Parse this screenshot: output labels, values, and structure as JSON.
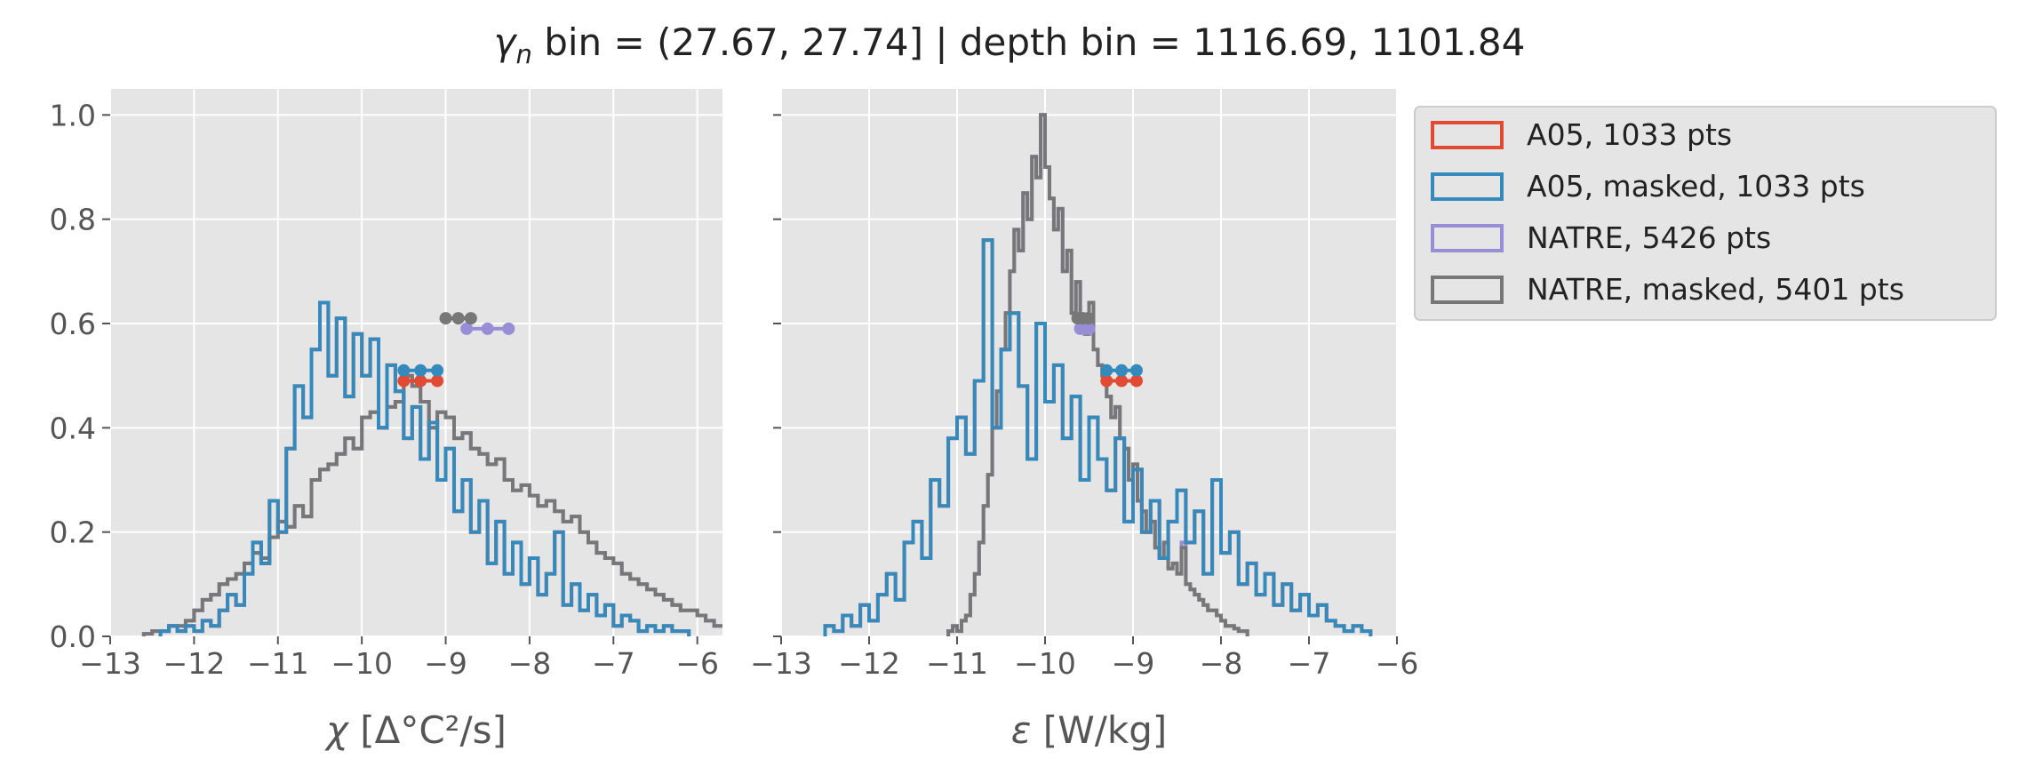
{
  "figure": {
    "title_prefix": "γ",
    "title_subscript": "n",
    "title_rest": " bin = (27.67, 27.74] | depth bin = 1116.69, 1101.84"
  },
  "colors": {
    "A05": "#E24A33",
    "A05_masked": "#348ABD",
    "NATRE": "#988ED5",
    "NATRE_masked": "#777777",
    "panel_bg": "#E5E5E5",
    "grid": "#FFFFFF"
  },
  "legend": {
    "placement": "outside-right",
    "entries": [
      {
        "key": "A05",
        "label": "A05, 1033 pts"
      },
      {
        "key": "A05_masked",
        "label": "A05, masked,  1033 pts"
      },
      {
        "key": "NATRE",
        "label": "NATRE, 5426 pts"
      },
      {
        "key": "NATRE_masked",
        "label": "NATRE, masked,  5401 pts"
      }
    ]
  },
  "chart_data": [
    {
      "type": "histogram",
      "histtype": "step",
      "xlabel_symbol": "χ",
      "xlabel_unit": " [Δ°C²/s]",
      "xlim": [
        -13.0,
        -5.7
      ],
      "ylim": [
        0,
        1.05
      ],
      "xticks": [
        -13,
        -12,
        -11,
        -10,
        -9,
        -8,
        -7,
        -6
      ],
      "xtick_labels": [
        "−13",
        "−12",
        "−11",
        "−10",
        "−9",
        "−8",
        "−7",
        "−6"
      ],
      "yticks": [
        0.0,
        0.2,
        0.4,
        0.6,
        0.8,
        1.0
      ],
      "ytick_labels": [
        "0.0",
        "0.2",
        "0.4",
        "0.6",
        "0.8",
        "1.0"
      ],
      "grid": true,
      "series": [
        {
          "key": "NATRE",
          "bin_start": -12.6,
          "bin_width": 0.1,
          "values": [
            0.005,
            0.01,
            0.01,
            0.02,
            0.02,
            0.03,
            0.05,
            0.07,
            0.08,
            0.1,
            0.11,
            0.12,
            0.14,
            0.16,
            0.15,
            0.19,
            0.22,
            0.21,
            0.25,
            0.23,
            0.3,
            0.32,
            0.33,
            0.35,
            0.38,
            0.36,
            0.42,
            0.43,
            0.4,
            0.44,
            0.45,
            0.5,
            0.48,
            0.45,
            0.4,
            0.43,
            0.42,
            0.38,
            0.39,
            0.36,
            0.35,
            0.33,
            0.34,
            0.3,
            0.28,
            0.29,
            0.27,
            0.25,
            0.26,
            0.24,
            0.22,
            0.23,
            0.2,
            0.18,
            0.16,
            0.15,
            0.14,
            0.12,
            0.11,
            0.1,
            0.09,
            0.08,
            0.07,
            0.06,
            0.05,
            0.05,
            0.04,
            0.03,
            0.02,
            0.02,
            0.015,
            0.01,
            0.01,
            0.01,
            0.005,
            0.005,
            0.01,
            0.005,
            0.005,
            0.005,
            0.005,
            0.005,
            0.005
          ]
        },
        {
          "key": "NATRE_masked",
          "bin_start": -12.6,
          "bin_width": 0.1,
          "values": [
            0.005,
            0.01,
            0.01,
            0.02,
            0.02,
            0.03,
            0.05,
            0.07,
            0.08,
            0.1,
            0.11,
            0.12,
            0.14,
            0.16,
            0.15,
            0.19,
            0.22,
            0.21,
            0.25,
            0.23,
            0.3,
            0.32,
            0.33,
            0.35,
            0.38,
            0.36,
            0.42,
            0.43,
            0.4,
            0.44,
            0.45,
            0.5,
            0.48,
            0.45,
            0.4,
            0.43,
            0.42,
            0.38,
            0.39,
            0.36,
            0.35,
            0.33,
            0.34,
            0.3,
            0.28,
            0.29,
            0.27,
            0.25,
            0.26,
            0.24,
            0.22,
            0.23,
            0.2,
            0.18,
            0.16,
            0.15,
            0.14,
            0.12,
            0.11,
            0.1,
            0.09,
            0.08,
            0.07,
            0.06,
            0.05,
            0.05,
            0.04,
            0.03,
            0.02,
            0.02,
            0.015,
            0.01
          ]
        },
        {
          "key": "A05",
          "bin_start": -12.4,
          "bin_width": 0.1,
          "values": [
            0.01,
            0.02,
            0.01,
            0.02,
            0.01,
            0.03,
            0.02,
            0.05,
            0.08,
            0.06,
            0.12,
            0.18,
            0.14,
            0.26,
            0.2,
            0.36,
            0.48,
            0.42,
            0.55,
            0.64,
            0.5,
            0.61,
            0.46,
            0.58,
            0.5,
            0.57,
            0.4,
            0.52,
            0.47,
            0.38,
            0.44,
            0.34,
            0.41,
            0.3,
            0.36,
            0.24,
            0.3,
            0.2,
            0.26,
            0.14,
            0.22,
            0.12,
            0.18,
            0.1,
            0.15,
            0.08,
            0.12,
            0.2,
            0.06,
            0.1,
            0.05,
            0.08,
            0.04,
            0.06,
            0.02,
            0.04,
            0.03,
            0.01,
            0.02,
            0.01,
            0.02,
            0.01,
            0.01
          ]
        },
        {
          "key": "A05_masked",
          "bin_start": -12.4,
          "bin_width": 0.1,
          "values": [
            0.01,
            0.02,
            0.01,
            0.02,
            0.01,
            0.03,
            0.02,
            0.05,
            0.08,
            0.06,
            0.12,
            0.18,
            0.14,
            0.26,
            0.2,
            0.36,
            0.48,
            0.42,
            0.55,
            0.64,
            0.5,
            0.61,
            0.46,
            0.58,
            0.5,
            0.57,
            0.4,
            0.52,
            0.47,
            0.38,
            0.44,
            0.34,
            0.41,
            0.3,
            0.36,
            0.24,
            0.3,
            0.2,
            0.26,
            0.14,
            0.22,
            0.12,
            0.18,
            0.1,
            0.15,
            0.08,
            0.12,
            0.2,
            0.06,
            0.1,
            0.05,
            0.08,
            0.04,
            0.06,
            0.02,
            0.04,
            0.03,
            0.01,
            0.02,
            0.01,
            0.02,
            0.01,
            0.01
          ]
        }
      ],
      "markers": [
        {
          "key": "A05",
          "x": [
            -9.5,
            -9.3,
            -9.1
          ],
          "y": 0.49
        },
        {
          "key": "A05_masked",
          "x": [
            -9.5,
            -9.3,
            -9.1
          ],
          "y": 0.51
        },
        {
          "key": "NATRE",
          "x": [
            -8.75,
            -8.5,
            -8.25
          ],
          "y": 0.59
        },
        {
          "key": "NATRE_masked",
          "x": [
            -9.0,
            -8.85,
            -8.7
          ],
          "y": 0.61
        }
      ]
    },
    {
      "type": "histogram",
      "histtype": "step",
      "xlabel_symbol": "ε",
      "xlabel_unit": " [W/kg]",
      "xlim": [
        -13.0,
        -6.0
      ],
      "ylim": [
        0,
        1.05
      ],
      "xticks": [
        -13,
        -12,
        -11,
        -10,
        -9,
        -8,
        -7,
        -6
      ],
      "xtick_labels": [
        "−13",
        "−12",
        "−11",
        "−10",
        "−9",
        "−8",
        "−7",
        "−6"
      ],
      "yticks": [
        0.0,
        0.2,
        0.4,
        0.6,
        0.8,
        1.0
      ],
      "ytick_labels": [
        "",
        "",
        "",
        "",
        "",
        ""
      ],
      "grid": true,
      "series": [
        {
          "key": "NATRE",
          "bin_start": -11.1,
          "bin_width": 0.05,
          "values": [
            0.01,
            0.02,
            0.01,
            0.03,
            0.04,
            0.08,
            0.12,
            0.18,
            0.25,
            0.31,
            0.4,
            0.47,
            0.55,
            0.62,
            0.7,
            0.78,
            0.74,
            0.85,
            0.8,
            0.92,
            0.88,
            1.0,
            0.9,
            0.84,
            0.78,
            0.82,
            0.7,
            0.74,
            0.62,
            0.68,
            0.6,
            0.58,
            0.64,
            0.55,
            0.52,
            0.5,
            0.46,
            0.42,
            0.44,
            0.38,
            0.36,
            0.3,
            0.33,
            0.26,
            0.24,
            0.2,
            0.22,
            0.17,
            0.15,
            0.18,
            0.13,
            0.14,
            0.12,
            0.18,
            0.1,
            0.09,
            0.08,
            0.07,
            0.06,
            0.05,
            0.05,
            0.04,
            0.03,
            0.02,
            0.02,
            0.015,
            0.01,
            0.01
          ]
        },
        {
          "key": "NATRE_masked",
          "bin_start": -11.1,
          "bin_width": 0.05,
          "values": [
            0.01,
            0.02,
            0.01,
            0.03,
            0.04,
            0.08,
            0.12,
            0.18,
            0.25,
            0.31,
            0.4,
            0.47,
            0.55,
            0.62,
            0.7,
            0.78,
            0.74,
            0.85,
            0.8,
            0.92,
            0.88,
            1.0,
            0.9,
            0.84,
            0.78,
            0.82,
            0.7,
            0.74,
            0.62,
            0.68,
            0.6,
            0.58,
            0.64,
            0.55,
            0.52,
            0.5,
            0.46,
            0.42,
            0.44,
            0.38,
            0.36,
            0.3,
            0.33,
            0.26,
            0.24,
            0.2,
            0.22,
            0.17,
            0.15,
            0.18,
            0.13,
            0.14,
            0.12,
            0.17,
            0.1,
            0.09,
            0.08,
            0.07,
            0.06,
            0.05,
            0.05,
            0.04,
            0.03,
            0.02,
            0.02,
            0.015,
            0.01,
            0.01
          ]
        },
        {
          "key": "A05",
          "bin_start": -12.5,
          "bin_width": 0.1,
          "values": [
            0.02,
            0.01,
            0.04,
            0.02,
            0.06,
            0.03,
            0.08,
            0.12,
            0.07,
            0.18,
            0.22,
            0.15,
            0.3,
            0.25,
            0.38,
            0.42,
            0.35,
            0.49,
            0.76,
            0.4,
            0.55,
            0.62,
            0.48,
            0.34,
            0.6,
            0.45,
            0.52,
            0.38,
            0.46,
            0.3,
            0.42,
            0.34,
            0.28,
            0.38,
            0.22,
            0.32,
            0.2,
            0.26,
            0.15,
            0.22,
            0.28,
            0.18,
            0.24,
            0.12,
            0.3,
            0.16,
            0.2,
            0.1,
            0.14,
            0.08,
            0.12,
            0.06,
            0.1,
            0.05,
            0.08,
            0.04,
            0.06,
            0.03,
            0.02,
            0.01,
            0.02,
            0.01
          ]
        },
        {
          "key": "A05_masked",
          "bin_start": -12.5,
          "bin_width": 0.1,
          "values": [
            0.02,
            0.01,
            0.04,
            0.02,
            0.06,
            0.03,
            0.08,
            0.12,
            0.07,
            0.18,
            0.22,
            0.15,
            0.3,
            0.25,
            0.38,
            0.42,
            0.35,
            0.49,
            0.76,
            0.4,
            0.55,
            0.62,
            0.48,
            0.34,
            0.6,
            0.45,
            0.52,
            0.38,
            0.46,
            0.3,
            0.42,
            0.34,
            0.28,
            0.38,
            0.22,
            0.32,
            0.2,
            0.26,
            0.15,
            0.22,
            0.28,
            0.18,
            0.24,
            0.12,
            0.3,
            0.16,
            0.2,
            0.1,
            0.14,
            0.08,
            0.12,
            0.06,
            0.1,
            0.05,
            0.08,
            0.04,
            0.06,
            0.03,
            0.02,
            0.01,
            0.02,
            0.01
          ]
        }
      ],
      "markers": [
        {
          "key": "A05",
          "x": [
            -9.3,
            -9.13,
            -8.96
          ],
          "y": 0.49
        },
        {
          "key": "A05_masked",
          "x": [
            -9.3,
            -9.13,
            -8.96
          ],
          "y": 0.51
        },
        {
          "key": "NATRE",
          "x": [
            -9.6,
            -9.55,
            -9.5
          ],
          "y": 0.59
        },
        {
          "key": "NATRE_masked",
          "x": [
            -9.63,
            -9.57,
            -9.51
          ],
          "y": 0.61
        }
      ]
    }
  ]
}
